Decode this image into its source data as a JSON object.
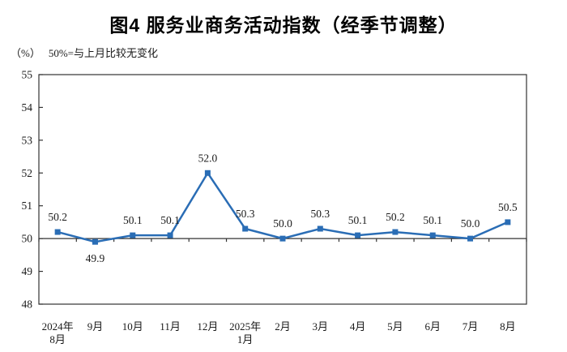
{
  "chart_data": {
    "type": "line",
    "title": "图4 服务业商务活动指数（经季节调整）",
    "unit_label": "（%）",
    "annotation": "50%=与上月比较无变化",
    "categories": [
      "2024年\n8月",
      "9月",
      "10月",
      "11月",
      "12月",
      "2025年\n1月",
      "2月",
      "3月",
      "4月",
      "5月",
      "6月",
      "7月",
      "8月"
    ],
    "values": [
      50.2,
      49.9,
      50.1,
      50.1,
      52.0,
      50.3,
      50.0,
      50.3,
      50.1,
      50.2,
      50.1,
      50.0,
      50.5
    ],
    "series_name": "服务业商务活动指数",
    "xlabel": "",
    "ylabel": "",
    "ylim": [
      48,
      55
    ],
    "ytick_step": 1,
    "baseline_value": 50,
    "grid": "off",
    "legend": "none",
    "marker": "square",
    "data_labels": "on",
    "colors": {
      "line": "#2A6DB5",
      "axis": "#333333",
      "text": "#1a1a1a"
    }
  }
}
